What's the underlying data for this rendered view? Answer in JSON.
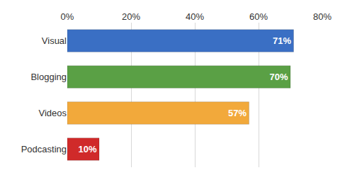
{
  "chart_data": {
    "type": "bar",
    "orientation": "horizontal",
    "categories": [
      "Visual",
      "Blogging",
      "Videos",
      "Podcasting"
    ],
    "values": [
      71,
      70,
      57,
      10
    ],
    "value_labels": [
      "71%",
      "70%",
      "57%",
      "10%"
    ],
    "colors": [
      "#3a6fc4",
      "#5aa045",
      "#f2a93b",
      "#d02a2a"
    ],
    "xlim": [
      0,
      80
    ],
    "xticks": [
      {
        "value": 0,
        "label": "0%"
      },
      {
        "value": 20,
        "label": "20%"
      },
      {
        "value": 40,
        "label": "40%"
      },
      {
        "value": 60,
        "label": "60%"
      },
      {
        "value": 80,
        "label": "80%"
      }
    ],
    "grid": true,
    "data_labels": true
  }
}
